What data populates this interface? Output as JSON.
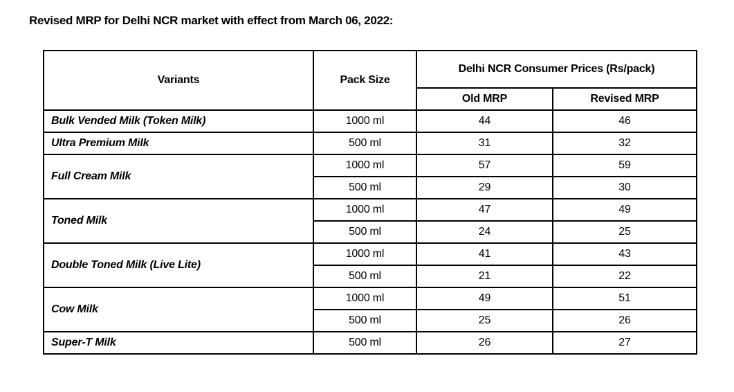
{
  "title": "Revised MRP for Delhi NCR market with effect from March 06, 2022:",
  "table": {
    "headers": {
      "variants": "Variants",
      "pack_size": "Pack Size",
      "group": "Delhi NCR Consumer Prices (Rs/pack)",
      "old_mrp": "Old MRP",
      "revised_mrp": "Revised MRP"
    },
    "groups": [
      {
        "variant": "Bulk Vended Milk (Token Milk)",
        "rows": [
          {
            "pack": "1000 ml",
            "old": "44",
            "revised": "46"
          }
        ]
      },
      {
        "variant": "Ultra Premium Milk",
        "rows": [
          {
            "pack": "500 ml",
            "old": "31",
            "revised": "32"
          }
        ]
      },
      {
        "variant": "Full Cream Milk",
        "rows": [
          {
            "pack": "1000 ml",
            "old": "57",
            "revised": "59"
          },
          {
            "pack": "500 ml",
            "old": "29",
            "revised": "30"
          }
        ]
      },
      {
        "variant": "Toned Milk",
        "rows": [
          {
            "pack": "1000 ml",
            "old": "47",
            "revised": "49"
          },
          {
            "pack": "500 ml",
            "old": "24",
            "revised": "25"
          }
        ]
      },
      {
        "variant": "Double Toned Milk (Live Lite)",
        "rows": [
          {
            "pack": "1000 ml",
            "old": "41",
            "revised": "43"
          },
          {
            "pack": "500 ml",
            "old": "21",
            "revised": "22"
          }
        ]
      },
      {
        "variant": "Cow Milk",
        "rows": [
          {
            "pack": "1000 ml",
            "old": "49",
            "revised": "51"
          },
          {
            "pack": "500 ml",
            "old": "25",
            "revised": "26"
          }
        ]
      },
      {
        "variant": "Super-T Milk",
        "rows": [
          {
            "pack": "500 ml",
            "old": "26",
            "revised": "27"
          }
        ]
      }
    ]
  }
}
